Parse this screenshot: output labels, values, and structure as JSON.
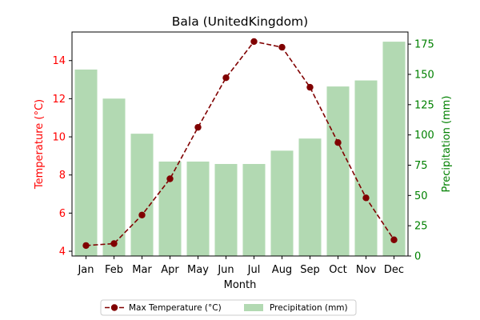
{
  "chart_data": {
    "type": "bar+line",
    "title": "Bala (UnitedKingdom)",
    "xlabel": "Month",
    "ylabel_left": "Temperature (°C)",
    "ylabel_right": "Precipitation (mm)",
    "categories": [
      "Jan",
      "Feb",
      "Mar",
      "Apr",
      "May",
      "Jun",
      "Jul",
      "Aug",
      "Sep",
      "Oct",
      "Nov",
      "Dec"
    ],
    "series": [
      {
        "name": "Max Temperature (°C)",
        "kind": "line",
        "axis": "left",
        "color": "#800000",
        "values": [
          4.3,
          4.4,
          5.9,
          7.8,
          10.5,
          13.1,
          15.0,
          14.7,
          12.6,
          9.7,
          6.8,
          4.6
        ]
      },
      {
        "name": "Precipitation (mm)",
        "kind": "bar",
        "axis": "right",
        "color": "#b2d9b2",
        "values": [
          154,
          130,
          101,
          78,
          78,
          76,
          76,
          87,
          97,
          140,
          145,
          177
        ]
      }
    ],
    "ylim_left": [
      3.75,
      15.5
    ],
    "ylim_right": [
      0,
      185
    ],
    "yticks_left": [
      4,
      6,
      8,
      10,
      12,
      14
    ],
    "yticks_right": [
      0,
      25,
      50,
      75,
      100,
      125,
      150,
      175
    ],
    "left_axis_color": "#ff0000",
    "right_axis_color": "#008000",
    "grid": false,
    "legend_position": "bottom-center"
  }
}
